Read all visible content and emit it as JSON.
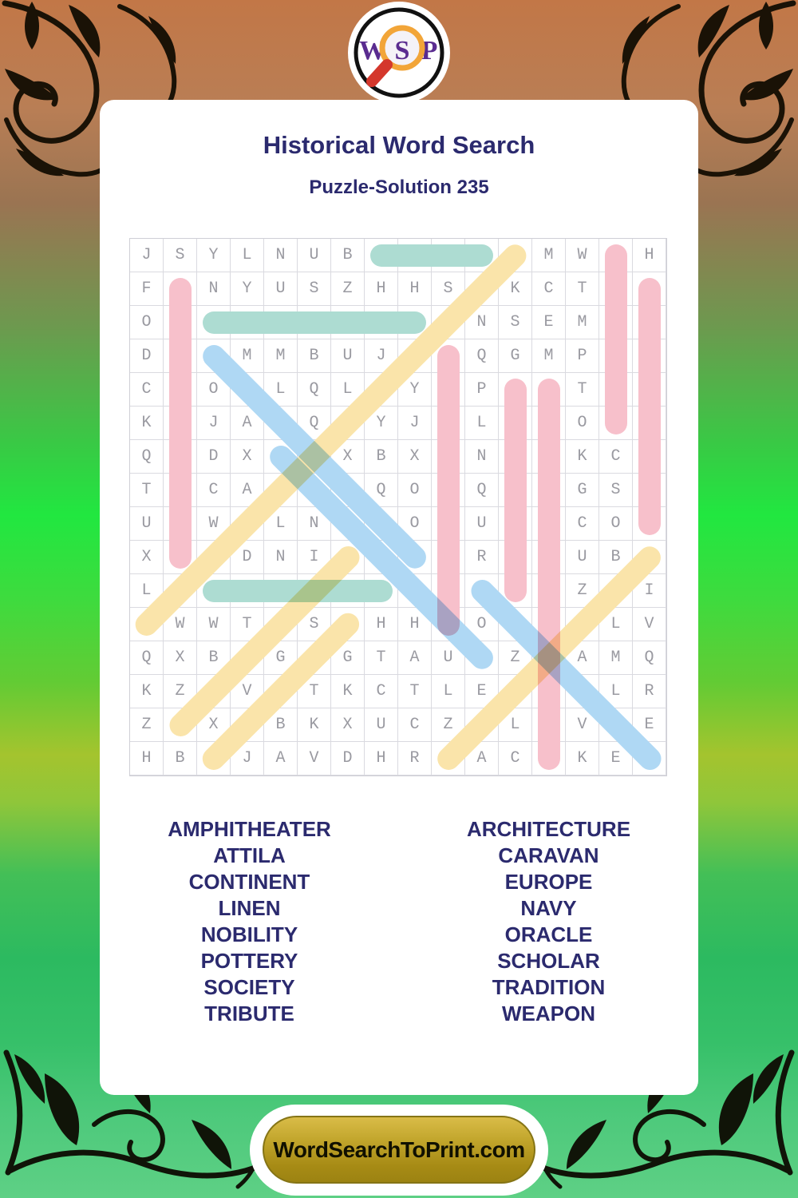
{
  "header": {
    "title": "Historical Word Search",
    "subtitle": "Puzzle-Solution 235"
  },
  "logo": {
    "letters": [
      "W",
      "S",
      "P"
    ]
  },
  "grid": {
    "size": 16,
    "rows": [
      "JSYLNUBNAVYEMWAH",
      "FTNYUSZHHSRKCTTN",
      "ORSCHOLARUNSEMTO",
      "DAPMMBUJTCQGMPIB",
      "CDOOLQLCYOPSATLI",
      "KIJATQEYJNLOMOAL",
      "QTDXTTXBXTNCPKCI",
      "TICAIREQOIQIHGST",
      "UOWHLNIRONUEICOY",
      "XNCDNIEBYERTTUBN",
      "LRWEAPONUNOYHZAI",
      "AWWTOSNHHTOREVLV",
      "QXBRGEGTAUEZAAMQ",
      "KZUVNTKCTLERTCLR",
      "ZEXIBKXUCZALEVLE",
      "HBLJAVDHRCACRKEE"
    ]
  },
  "solutions": [
    {
      "word": "NAVY",
      "row": 1,
      "col": 8,
      "dr": 0,
      "dc": 1,
      "color": "teal"
    },
    {
      "word": "SCHOLAR",
      "row": 3,
      "col": 3,
      "dr": 0,
      "dc": 1,
      "color": "teal"
    },
    {
      "word": "WEAPON",
      "row": 11,
      "col": 3,
      "dr": 0,
      "dc": 1,
      "color": "teal"
    },
    {
      "word": "TRADITION",
      "row": 2,
      "col": 2,
      "dr": 1,
      "dc": 0,
      "color": "pink"
    },
    {
      "word": "CONTINENT",
      "row": 4,
      "col": 10,
      "dr": 1,
      "dc": 0,
      "color": "pink"
    },
    {
      "word": "SOCIETY",
      "row": 5,
      "col": 12,
      "dr": 1,
      "dc": 0,
      "color": "pink"
    },
    {
      "word": "AMPHITHEATER",
      "row": 5,
      "col": 13,
      "dr": 1,
      "dc": 0,
      "color": "pink"
    },
    {
      "word": "ATTILA",
      "row": 1,
      "col": 15,
      "dr": 1,
      "dc": 0,
      "color": "pink"
    },
    {
      "word": "NOBILITY",
      "row": 2,
      "col": 16,
      "dr": 1,
      "dc": 0,
      "color": "pink"
    },
    {
      "word": "POTTERY",
      "row": 4,
      "col": 3,
      "dr": 1,
      "dc": 1,
      "color": "blue"
    },
    {
      "word": "TRIBUTE",
      "row": 7,
      "col": 5,
      "dr": 1,
      "dc": 1,
      "color": "blue"
    },
    {
      "word": "ORACLE",
      "row": 11,
      "col": 11,
      "dr": 1,
      "dc": 1,
      "color": "blue"
    },
    {
      "word": "ARCHITECTURE",
      "row": 12,
      "col": 1,
      "dr": -1,
      "dc": 1,
      "color": "yellow"
    },
    {
      "word": "EUROPE",
      "row": 15,
      "col": 2,
      "dr": -1,
      "dc": 1,
      "color": "yellow"
    },
    {
      "word": "LINEN",
      "row": 16,
      "col": 3,
      "dr": -1,
      "dc": 1,
      "color": "yellow"
    },
    {
      "word": "CARAVAN",
      "row": 16,
      "col": 10,
      "dr": -1,
      "dc": 1,
      "color": "yellow"
    }
  ],
  "palette": {
    "pink": "#f7c0cb",
    "blue": "#afd8f4",
    "yellow": "#fae4aa",
    "teal": "#addcd2",
    "navy_text": "#2b2a6e",
    "logo_purple": "#5a2c90",
    "logo_orange": "#f2a538",
    "logo_red": "#d4372c",
    "button_gold": "#b2961c"
  },
  "word_list": {
    "left": [
      "AMPHITHEATER",
      "ATTILA",
      "CONTINENT",
      "LINEN",
      "NOBILITY",
      "POTTERY",
      "SOCIETY",
      "TRIBUTE"
    ],
    "right": [
      "ARCHITECTURE",
      "CARAVAN",
      "EUROPE",
      "NAVY",
      "ORACLE",
      "SCHOLAR",
      "TRADITION",
      "WEAPON"
    ]
  },
  "footer": {
    "label": "WordSearchToPrint.com"
  }
}
